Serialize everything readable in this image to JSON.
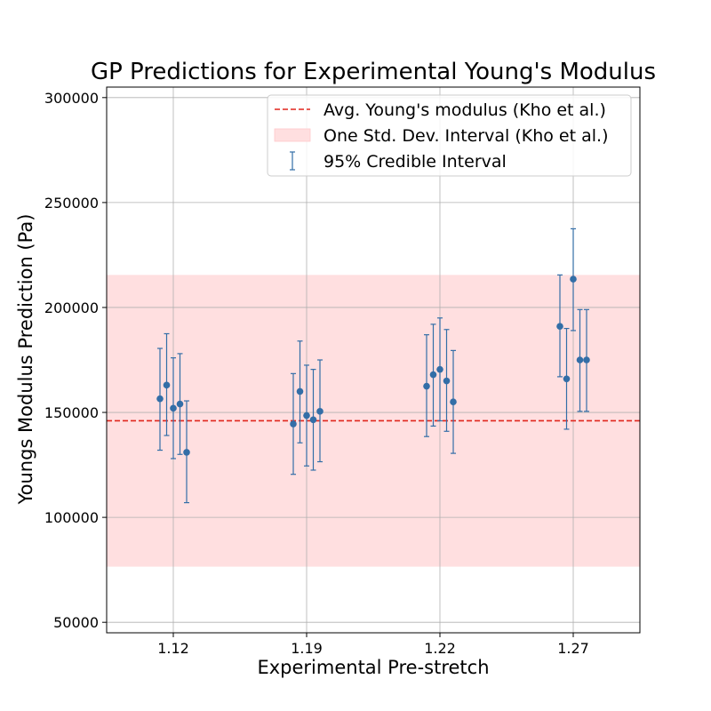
{
  "chart_data": {
    "type": "scatter",
    "title": "GP Predictions for Experimental Young's Modulus",
    "xlabel": "Experimental Pre-stretch",
    "ylabel": "Youngs Modulus Prediction (Pa)",
    "xlim": [
      0,
      4
    ],
    "ylim": [
      45000,
      305000
    ],
    "grid": true,
    "categories": [
      "1.12",
      "1.19",
      "1.22",
      "1.27"
    ],
    "yticks": [
      50000,
      100000,
      150000,
      200000,
      250000,
      300000
    ],
    "ytick_labels": [
      "50000",
      "100000",
      "150000",
      "200000",
      "250000",
      "300000"
    ],
    "average_line": {
      "value": 146000,
      "label": "Avg. Young's modulus (Kho et al.)",
      "color": "#e0251b"
    },
    "std_band": {
      "low": 76500,
      "high": 215500,
      "label": "One Std. Dev. Interval (Kho et al.)",
      "color": "#ffdfe0"
    },
    "legend_position": "upper right",
    "series": [
      {
        "name": "95% Credible Interval",
        "color": "#336ea7",
        "points": [
          {
            "x": 0.4,
            "y": 156500,
            "lower": 132000,
            "upper": 180500
          },
          {
            "x": 0.45,
            "y": 163000,
            "lower": 139000,
            "upper": 187500
          },
          {
            "x": 0.5,
            "y": 152000,
            "lower": 128000,
            "upper": 176000
          },
          {
            "x": 0.55,
            "y": 154000,
            "lower": 130000,
            "upper": 178000
          },
          {
            "x": 0.6,
            "y": 131000,
            "lower": 107000,
            "upper": 155500
          },
          {
            "x": 1.4,
            "y": 144500,
            "lower": 120500,
            "upper": 168500
          },
          {
            "x": 1.45,
            "y": 160000,
            "lower": 135500,
            "upper": 184000
          },
          {
            "x": 1.5,
            "y": 148500,
            "lower": 124500,
            "upper": 172500
          },
          {
            "x": 1.55,
            "y": 146500,
            "lower": 122500,
            "upper": 170500
          },
          {
            "x": 1.6,
            "y": 150500,
            "lower": 126500,
            "upper": 175000
          },
          {
            "x": 2.4,
            "y": 162500,
            "lower": 138500,
            "upper": 187000
          },
          {
            "x": 2.45,
            "y": 168000,
            "lower": 143500,
            "upper": 192000
          },
          {
            "x": 2.5,
            "y": 170500,
            "lower": 146000,
            "upper": 195000
          },
          {
            "x": 2.55,
            "y": 165000,
            "lower": 141000,
            "upper": 189500
          },
          {
            "x": 2.6,
            "y": 155000,
            "lower": 130500,
            "upper": 179500
          },
          {
            "x": 3.4,
            "y": 191000,
            "lower": 167000,
            "upper": 215500
          },
          {
            "x": 3.45,
            "y": 166000,
            "lower": 142000,
            "upper": 190000
          },
          {
            "x": 3.5,
            "y": 213500,
            "lower": 189000,
            "upper": 237500
          },
          {
            "x": 3.55,
            "y": 175000,
            "lower": 150500,
            "upper": 199000
          },
          {
            "x": 3.6,
            "y": 175000,
            "lower": 150500,
            "upper": 199000
          }
        ]
      }
    ]
  }
}
